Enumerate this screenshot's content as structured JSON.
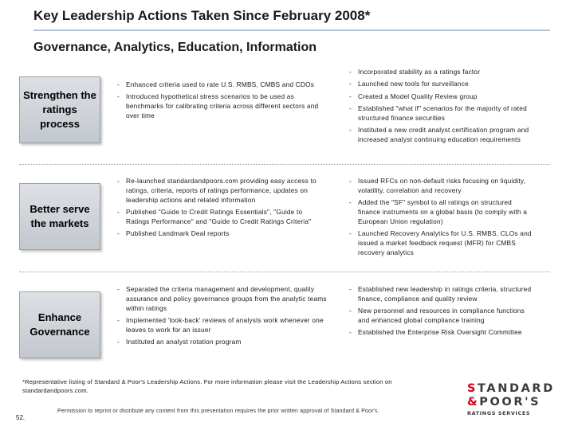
{
  "header": {
    "title": "Key Leadership Actions Taken Since February 2008*",
    "subtitle": "Governance, Analytics, Education, Information"
  },
  "rows": [
    {
      "label": "Strengthen the ratings process",
      "left_bullets": [
        "Enhanced criteria used to rate U.S. RMBS, CMBS and CDOs",
        "Introduced hypothetical stress scenarios to be used as benchmarks for calibrating criteria across different sectors and over time"
      ],
      "right_bullets": [
        "Incorporated stability as a ratings factor",
        "Launched new tools for surveillance",
        "Created a Model Quality Review group",
        "Established \"what if\" scenarios for the majority of rated structured finance securities",
        "Instituted a new credit analyst certification program and increased analyst continuing education requirements"
      ]
    },
    {
      "label": "Better serve the markets",
      "left_bullets": [
        "Re-launched standardandpoors.com providing easy access to ratings, criteria, reports of ratings performance, updates on leadership actions and related information",
        "Published \"Guide to Credit Ratings Essentials\", \"Guide to Ratings Performance\" and \"Guide to Credit Ratings Criteria\"",
        "Published Landmark Deal reports"
      ],
      "right_bullets": [
        "Issued RFCs on non-default risks focusing on liquidity, volatility, correlation and recovery",
        "Added the \"SF\" symbol to all ratings on structured finance instruments on a global basis (to comply with a European Union regulation)",
        "Launched Recovery Analytics for U.S. RMBS, CLOs and issued a market feedback request (MFR) for CMBS recovery analytics"
      ]
    },
    {
      "label": "Enhance Governance",
      "left_bullets": [
        "Separated the criteria management and development, quality assurance and policy governance groups from the analytic teams within ratings",
        "Implemented 'look-back' reviews of analysts work whenever one leaves to work for an issuer",
        "Instituted an analyst rotation program"
      ],
      "right_bullets": [
        "Established new leadership in ratings criteria, structured finance, compliance and quality review",
        "New personnel and resources in compliance functions and enhanced global compliance training",
        "Established the Enterprise Risk Oversight Committee"
      ]
    }
  ],
  "footer": {
    "footnote": "*Representative listing of Standard & Poor's Leadership Actions. For more information please visit the Leadership Actions section on standardandpoors.com.",
    "permission": "Permission to reprint or distribute any content from this presentation requires the prior written approval of Standard & Poor's.",
    "page_number": "52."
  },
  "logo": {
    "line1": "STANDARD",
    "line2": "&POOR'S",
    "tagline": "RATINGS SERVICES",
    "accent_color": "#d6001c"
  }
}
